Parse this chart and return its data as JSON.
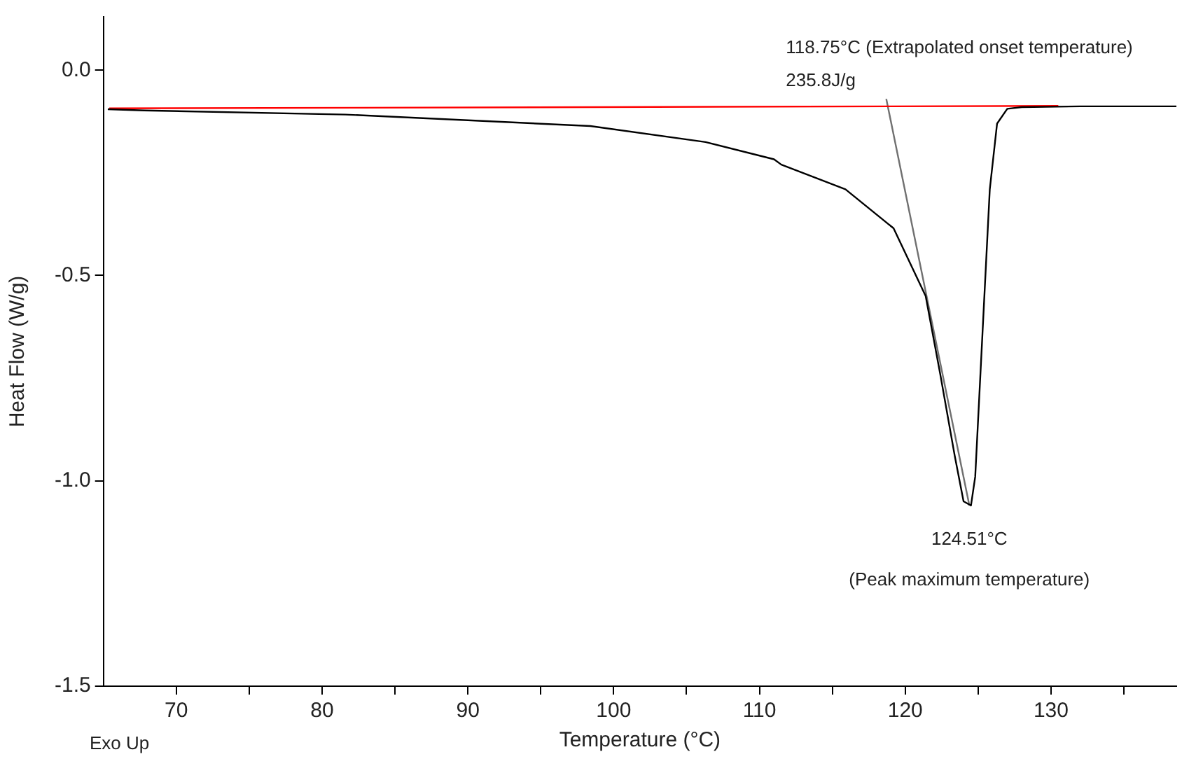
{
  "chart_data": {
    "type": "line",
    "xlabel": "Temperature (°C)",
    "ylabel": "Heat Flow (W/g)",
    "xlim": [
      65,
      138.6
    ],
    "ylim": [
      -1.5,
      0.13
    ],
    "xticks": [
      70,
      {
        "value": 75,
        "label": null
      },
      80,
      {
        "value": 85,
        "label": null
      },
      90,
      {
        "value": 95,
        "label": null
      },
      100,
      {
        "value": 105,
        "label": null
      },
      110,
      {
        "value": 115,
        "label": null
      },
      120,
      {
        "value": 125,
        "label": null
      },
      130,
      {
        "value": 135,
        "label": null
      }
    ],
    "yticks": [
      {
        "value": 0,
        "label": "0.0"
      },
      -0.5,
      {
        "value": -1,
        "label": "-1.0"
      },
      -1.5
    ],
    "grid": false,
    "legend": false,
    "marker": "none",
    "line_style": "solid",
    "series": [
      {
        "color": "#000000",
        "x": [
          65.3,
          67.8,
          81.6,
          98.4,
          106.3,
          111,
          111.5,
          115.9,
          119.2,
          121.4,
          122.4,
          123.4,
          124,
          124.51,
          124.8,
          125.3,
          125.8,
          126.3,
          127,
          128,
          132,
          138.6
        ],
        "values": [
          -0.095,
          -0.098,
          -0.108,
          -0.136,
          -0.175,
          -0.217,
          -0.23,
          -0.29,
          -0.385,
          -0.55,
          -0.74,
          -0.94,
          -1.05,
          -1.06,
          -0.99,
          -0.64,
          -0.29,
          -0.13,
          -0.094,
          -0.09,
          -0.088,
          -0.088
        ]
      },
      {
        "color": "#ff0000",
        "x": [
          65.4,
          130.5
        ],
        "values": [
          -0.093,
          -0.087
        ]
      },
      {
        "color": "#707070",
        "x": [
          118.7,
          124.4
        ],
        "values": [
          -0.07,
          -1.06
        ]
      }
    ],
    "annotations": [
      "118.75°C (Extrapolated onset temperature)",
      "235.8J/g",
      "124.51°C",
      "(Peak maximum temperature)",
      "Exo Up"
    ]
  }
}
